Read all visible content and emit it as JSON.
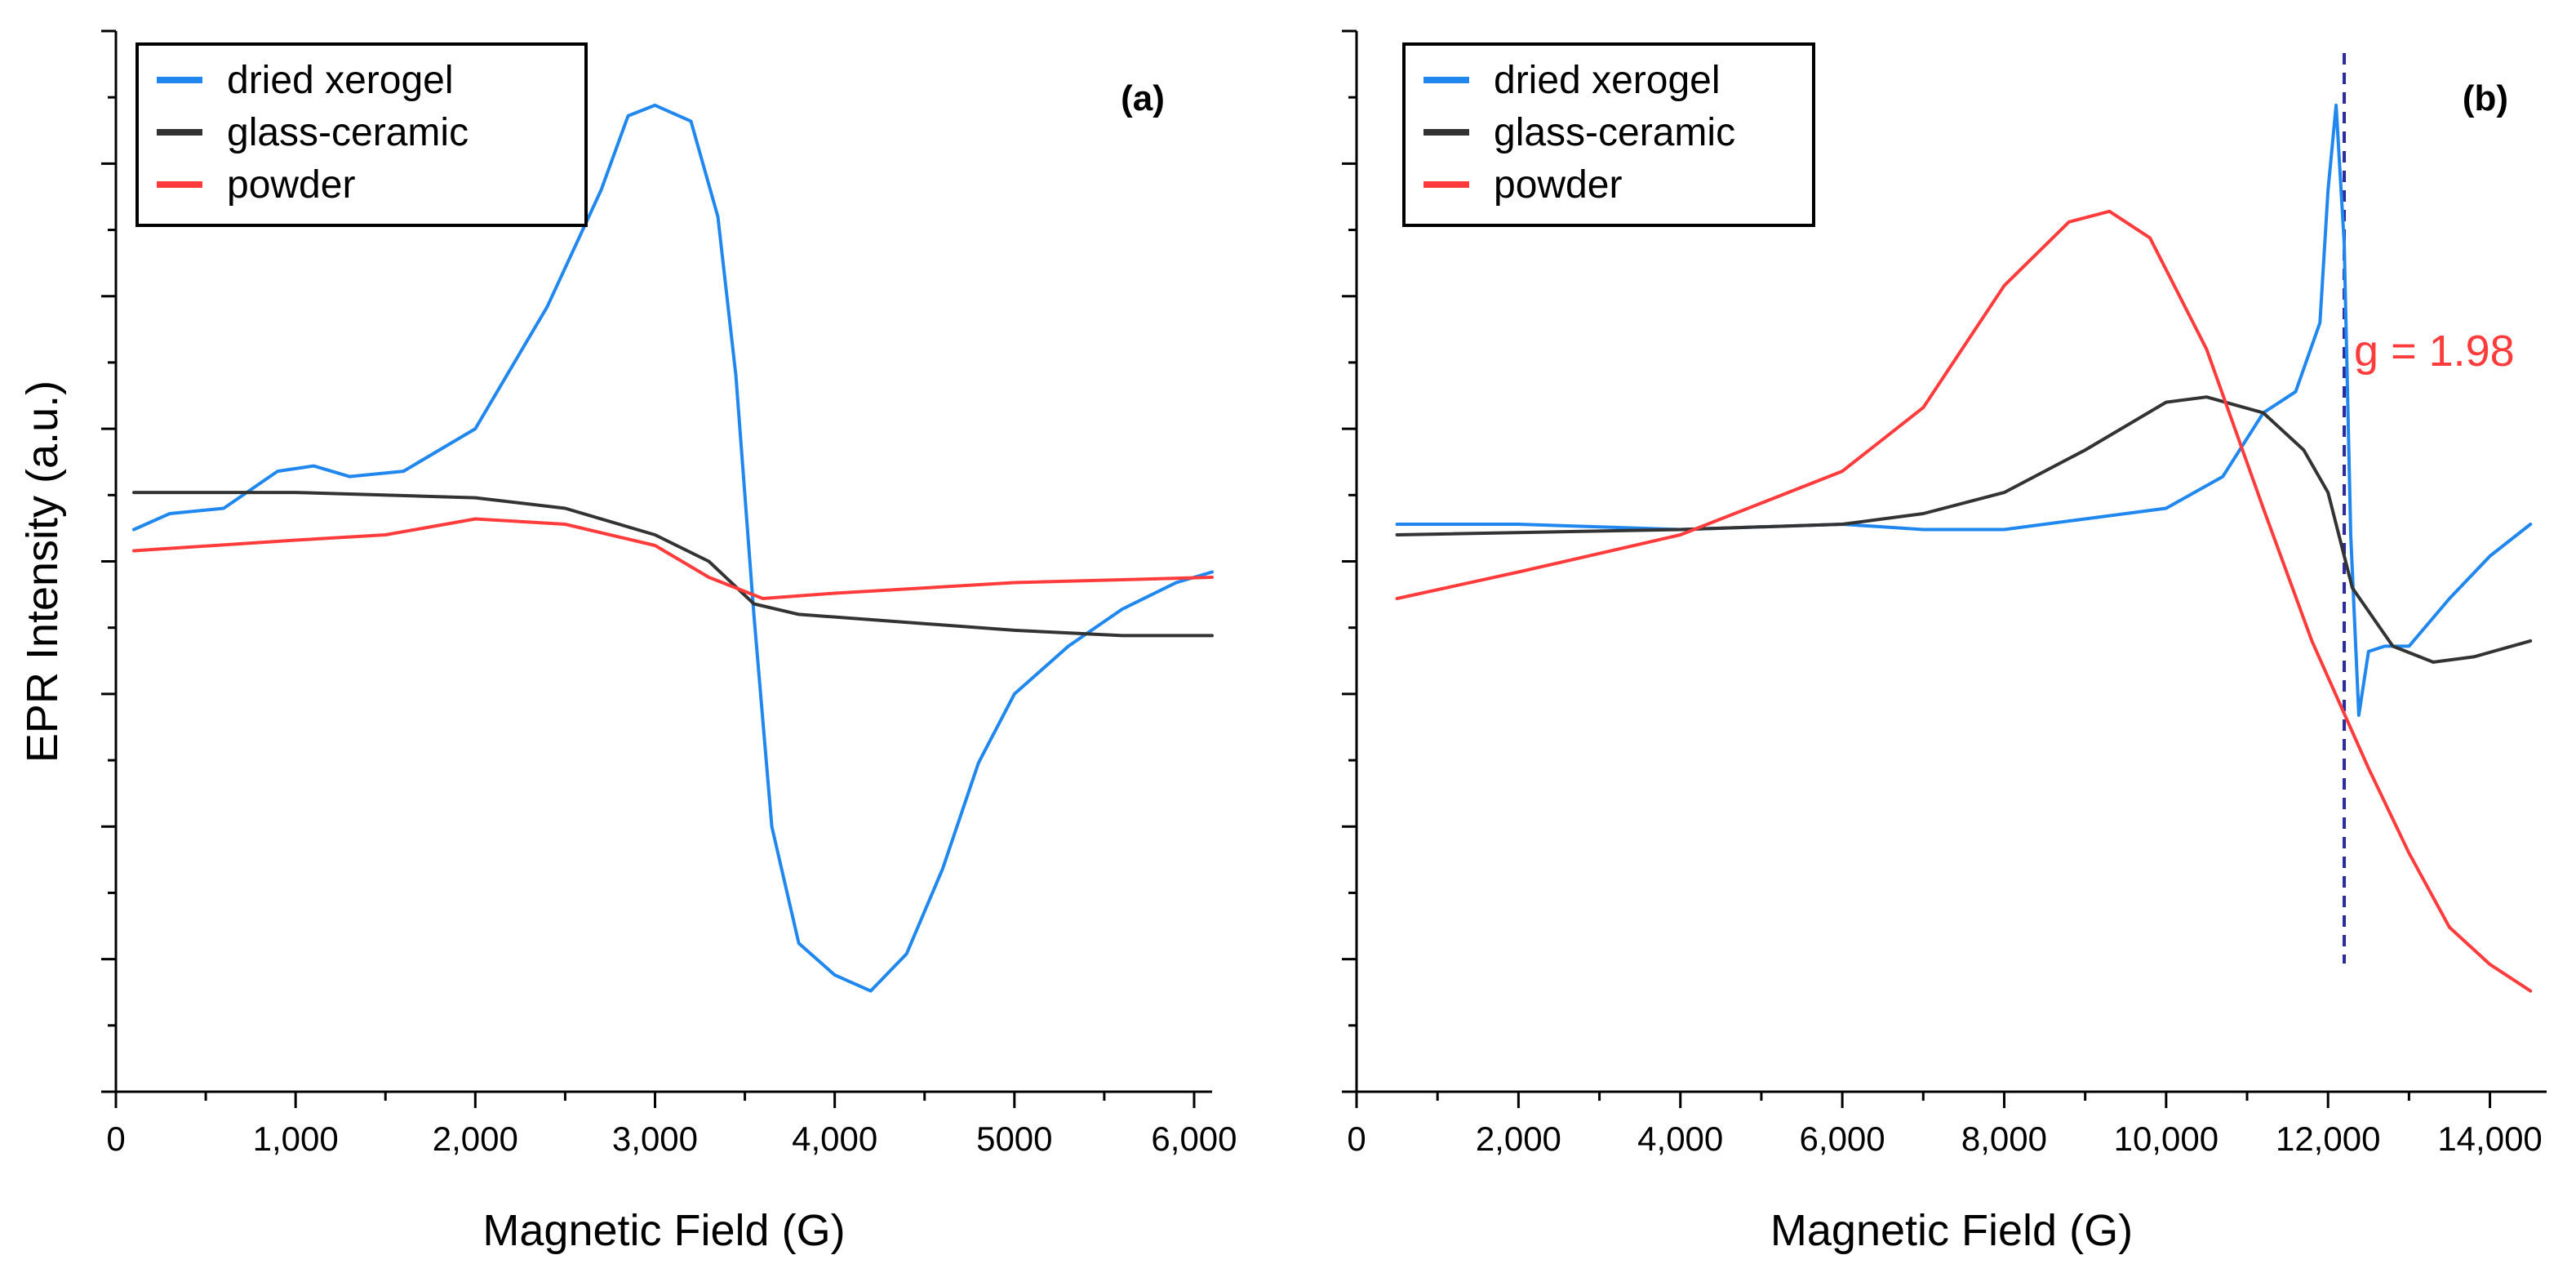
{
  "colors": {
    "dried_xerogel": "#1f87ee",
    "glass_ceramic": "#333333",
    "powder": "#ff3b3b",
    "g_line": "#2b2b9e"
  },
  "shared_ylabel": "EPR Intensity (a.u.)",
  "chart_data": [
    {
      "type": "line",
      "panel_label": "(a)",
      "xlabel": "Magnetic Field (G)",
      "xlim": [
        0,
        6100
      ],
      "ylim": [
        -1.0,
        1.0
      ],
      "xticks": [
        0,
        1000,
        2000,
        3000,
        4000,
        5000,
        6000
      ],
      "xtick_labels": [
        "0",
        "1,000",
        "2,000",
        "3,000",
        "4,000",
        "5000",
        "6,000"
      ],
      "legend": [
        "dried xerogel",
        "glass-ceramic",
        "powder"
      ],
      "legend_position": "top-left",
      "series": [
        {
          "name": "dried xerogel",
          "color_key": "dried_xerogel",
          "x": [
            100,
            300,
            600,
            900,
            1100,
            1300,
            1600,
            2000,
            2400,
            2700,
            2850,
            3000,
            3200,
            3350,
            3450,
            3550,
            3650,
            3800,
            4000,
            4200,
            4400,
            4600,
            4800,
            5000,
            5300,
            5600,
            5900,
            6100
          ],
          "y": [
            0.06,
            0.09,
            0.1,
            0.17,
            0.18,
            0.16,
            0.17,
            0.25,
            0.48,
            0.7,
            0.84,
            0.86,
            0.83,
            0.65,
            0.35,
            -0.1,
            -0.5,
            -0.72,
            -0.78,
            -0.81,
            -0.74,
            -0.58,
            -0.38,
            -0.25,
            -0.16,
            -0.09,
            -0.04,
            -0.02
          ]
        },
        {
          "name": "glass-ceramic",
          "color_key": "glass_ceramic",
          "x": [
            100,
            1000,
            2000,
            2500,
            3000,
            3300,
            3550,
            3800,
            4200,
            5000,
            5600,
            6100
          ],
          "y": [
            0.13,
            0.13,
            0.12,
            0.1,
            0.05,
            0.0,
            -0.08,
            -0.1,
            -0.11,
            -0.13,
            -0.14,
            -0.14
          ]
        },
        {
          "name": "powder",
          "color_key": "powder",
          "x": [
            100,
            1000,
            1500,
            2000,
            2500,
            3000,
            3300,
            3600,
            4000,
            5000,
            6100
          ],
          "y": [
            0.02,
            0.04,
            0.05,
            0.08,
            0.07,
            0.03,
            -0.03,
            -0.07,
            -0.06,
            -0.04,
            -0.03
          ]
        }
      ]
    },
    {
      "type": "line",
      "panel_label": "(b)",
      "xlabel": "Magnetic Field (G)",
      "xlim": [
        0,
        14700
      ],
      "ylim": [
        -1.0,
        1.0
      ],
      "xticks": [
        0,
        2000,
        4000,
        6000,
        8000,
        10000,
        12000,
        14000
      ],
      "xtick_labels": [
        "0",
        "2,000",
        "4,000",
        "6,000",
        "8,000",
        "10,000",
        "12,000",
        "14,000"
      ],
      "legend": [
        "dried xerogel",
        "glass-ceramic",
        "powder"
      ],
      "legend_position": "top-left",
      "annotation": {
        "text": "g = 1.98",
        "x": 12200
      },
      "series": [
        {
          "name": "dried xerogel",
          "color_key": "dried_xerogel",
          "x": [
            500,
            2000,
            4000,
            6000,
            7000,
            8000,
            9000,
            10000,
            10700,
            11200,
            11600,
            11900,
            12000,
            12100,
            12200,
            12280,
            12380,
            12500,
            12700,
            13000,
            13500,
            14000,
            14500
          ],
          "y": [
            0.07,
            0.07,
            0.06,
            0.07,
            0.06,
            0.06,
            0.08,
            0.1,
            0.16,
            0.28,
            0.32,
            0.45,
            0.7,
            0.86,
            0.6,
            0.05,
            -0.29,
            -0.17,
            -0.16,
            -0.16,
            -0.07,
            0.01,
            0.07
          ]
        },
        {
          "name": "glass-ceramic",
          "color_key": "glass_ceramic",
          "x": [
            500,
            4000,
            6000,
            7000,
            8000,
            9000,
            10000,
            10500,
            11200,
            11700,
            12000,
            12300,
            12800,
            13300,
            13800,
            14500
          ],
          "y": [
            0.05,
            0.06,
            0.07,
            0.09,
            0.13,
            0.21,
            0.3,
            0.31,
            0.28,
            0.21,
            0.13,
            -0.05,
            -0.16,
            -0.19,
            -0.18,
            -0.15
          ]
        },
        {
          "name": "powder",
          "color_key": "powder",
          "x": [
            500,
            2000,
            4000,
            5000,
            6000,
            7000,
            8000,
            8800,
            9300,
            9800,
            10500,
            11200,
            11800,
            12500,
            13000,
            13500,
            14000,
            14500
          ],
          "y": [
            -0.07,
            -0.02,
            0.05,
            0.11,
            0.17,
            0.29,
            0.52,
            0.64,
            0.66,
            0.61,
            0.4,
            0.1,
            -0.15,
            -0.39,
            -0.55,
            -0.69,
            -0.76,
            -0.81
          ]
        }
      ]
    }
  ]
}
